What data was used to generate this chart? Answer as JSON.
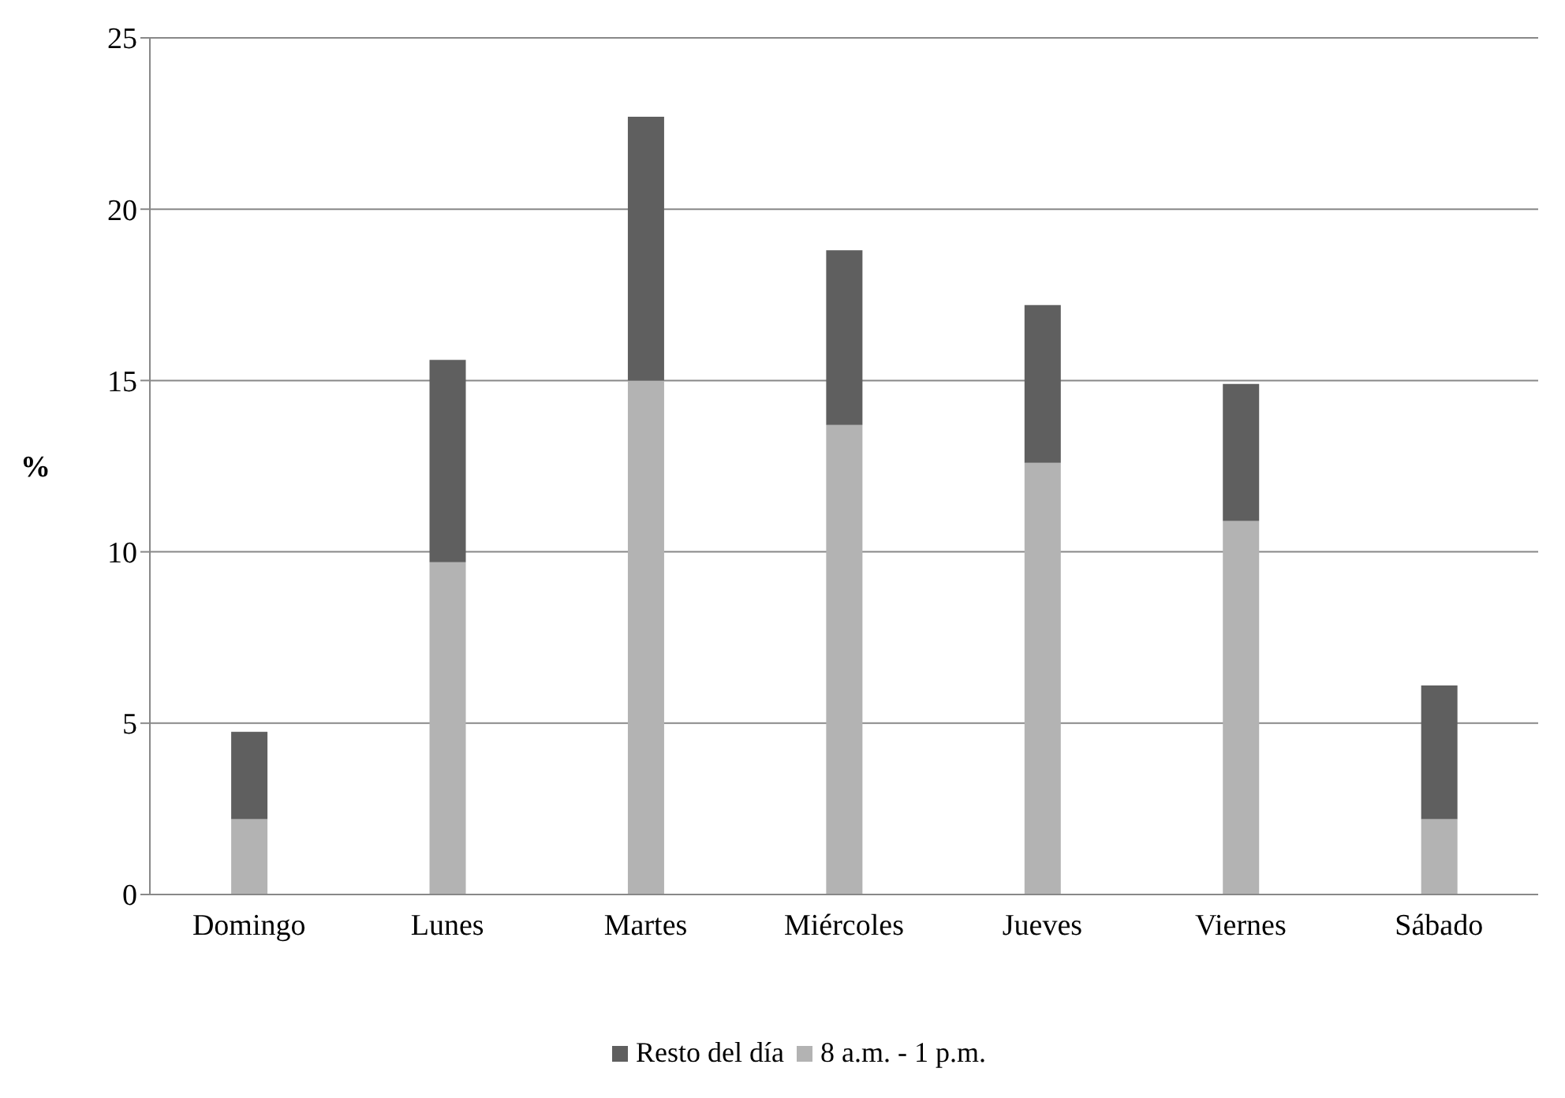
{
  "chart_data": {
    "type": "bar",
    "stacked": true,
    "ylabel": "%",
    "categories": [
      "Domingo",
      "Lunes",
      "Martes",
      "Miércoles",
      "Jueves",
      "Viernes",
      "Sábado"
    ],
    "series": [
      {
        "name": "8 a.m. - 1 p.m.",
        "color": "#b3b3b3",
        "values": [
          2.2,
          9.7,
          15.0,
          13.7,
          12.6,
          10.9,
          2.2
        ]
      },
      {
        "name": "Resto del día",
        "color": "#5f5f5f",
        "values": [
          2.55,
          5.9,
          7.7,
          5.1,
          4.6,
          4.0,
          3.9
        ]
      }
    ],
    "ylim": [
      0,
      25
    ],
    "yticks": [
      0,
      5,
      10,
      15,
      20,
      25
    ],
    "grid": "y",
    "legend": "bottom"
  }
}
